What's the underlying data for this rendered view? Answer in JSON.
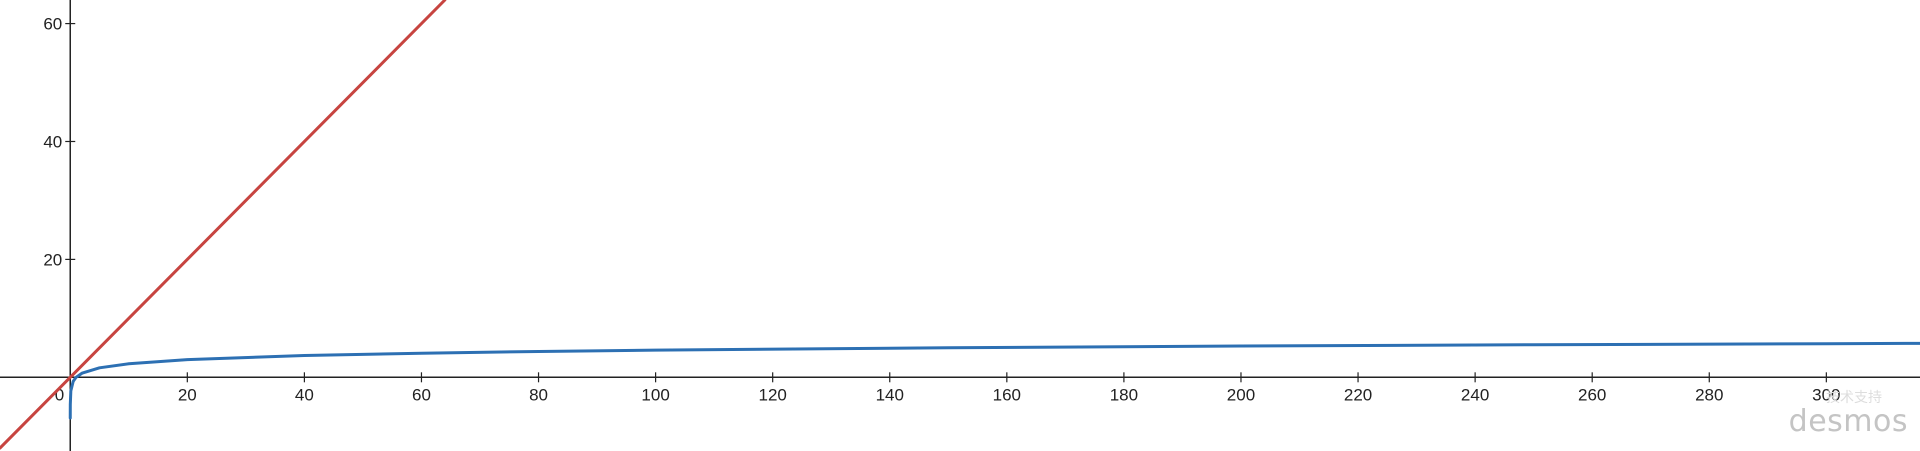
{
  "colors": {
    "background": "#ffffff",
    "axis": "#222222",
    "series_linear": "#c74440",
    "series_log": "#2d70b3"
  },
  "watermark": {
    "small_text": "技术支持",
    "brand": "desmos"
  },
  "chart_data": {
    "type": "line",
    "title": "",
    "xlabel": "",
    "ylabel": "",
    "xlim": [
      -12,
      316
    ],
    "ylim": [
      -12.5,
      64
    ],
    "grid": false,
    "origin_label": "0",
    "x_ticks": [
      20,
      40,
      60,
      80,
      100,
      120,
      140,
      160,
      180,
      200,
      220,
      240,
      260,
      280,
      300
    ],
    "y_ticks": [
      20,
      40,
      60
    ],
    "series": [
      {
        "function": "y = x",
        "color": "#c74440",
        "x": [
          -12,
          64
        ],
        "y": [
          -12,
          64
        ]
      },
      {
        "function": "y = ln(x)",
        "color": "#2d70b3",
        "x": [
          0.001,
          0.01,
          0.1,
          0.5,
          1,
          2,
          5,
          10,
          20,
          40,
          60,
          80,
          100,
          150,
          200,
          250,
          300,
          316
        ],
        "y": [
          -6.91,
          -4.61,
          -2.3,
          -0.69,
          0,
          0.69,
          1.61,
          2.3,
          3.0,
          3.69,
          4.09,
          4.38,
          4.61,
          5.01,
          5.3,
          5.52,
          5.7,
          5.76
        ]
      }
    ]
  }
}
